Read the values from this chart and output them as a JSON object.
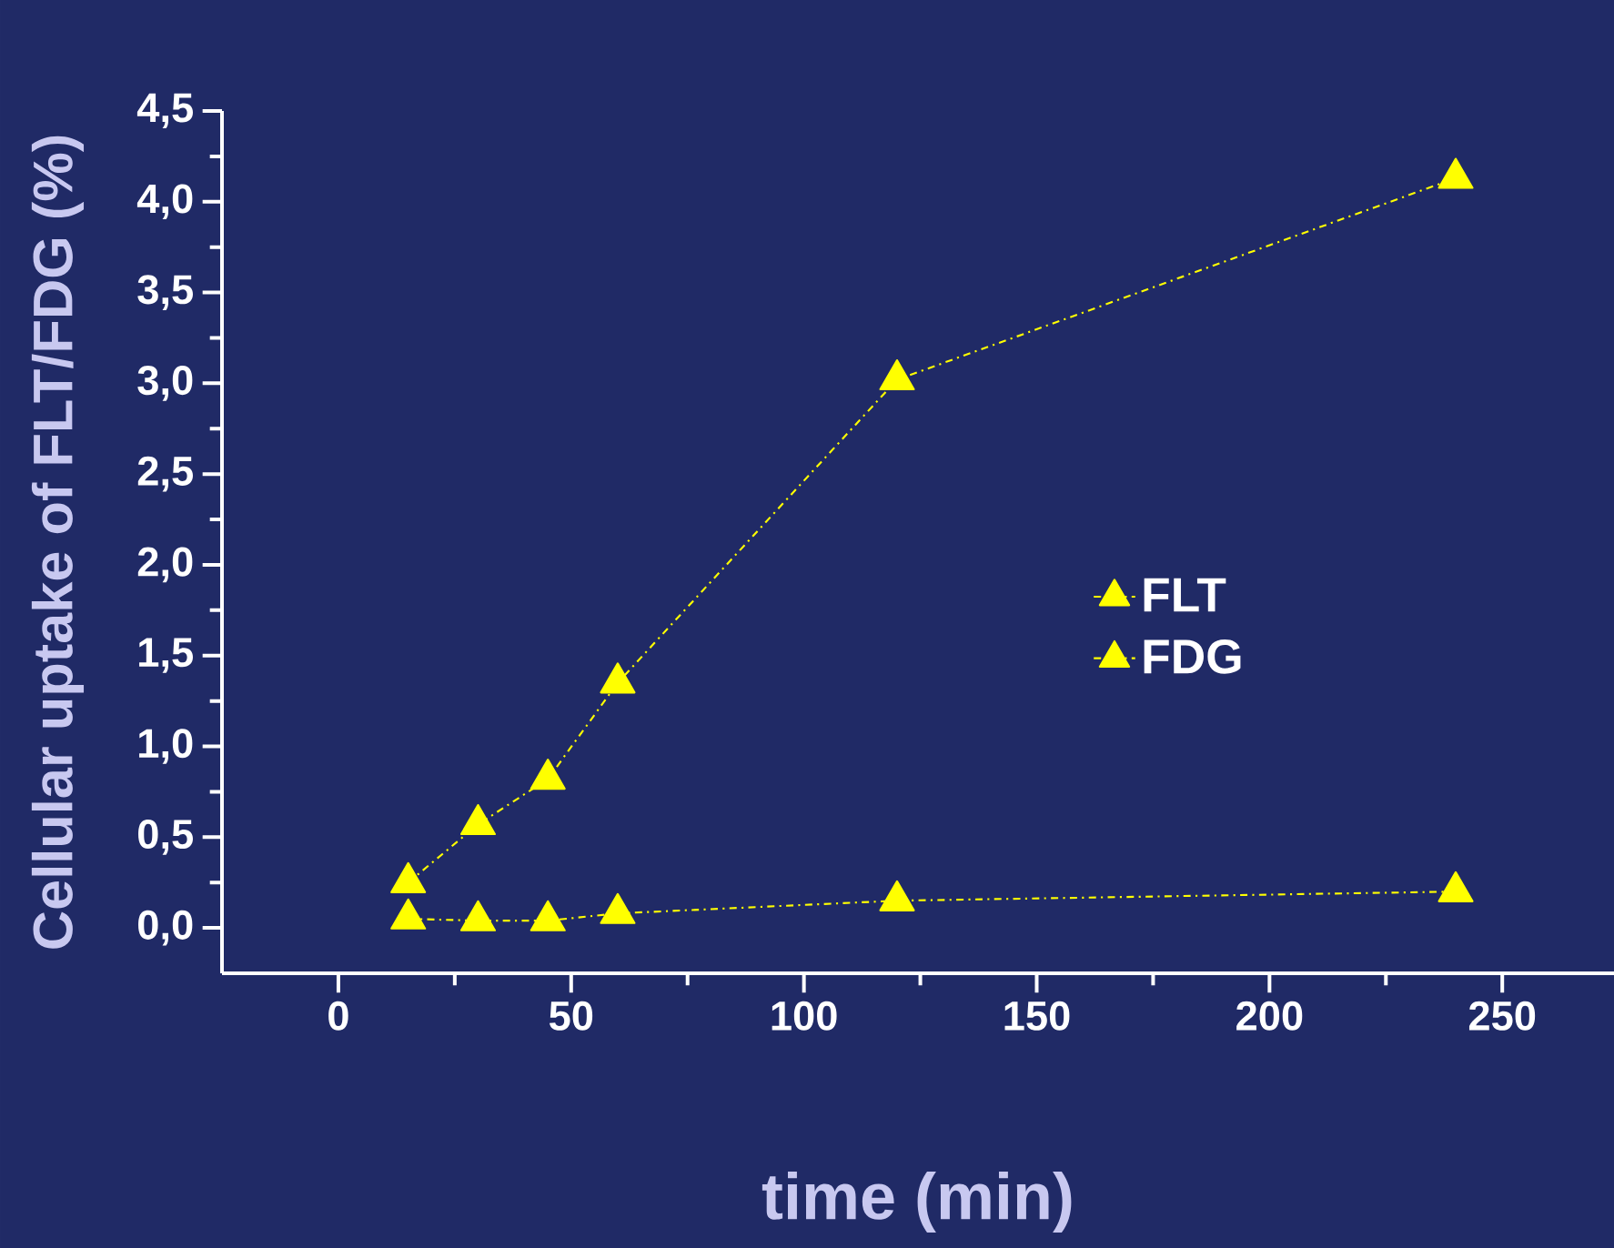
{
  "chart_data": {
    "type": "line",
    "xlabel": "time (min)",
    "ylabel": "Cellular uptake of  FLT/FDG (%)",
    "x": [
      15,
      30,
      45,
      60,
      120,
      240
    ],
    "series": [
      {
        "name": "FLT",
        "color": "#ffff00",
        "values": [
          0.25,
          0.57,
          0.82,
          1.35,
          3.02,
          4.13
        ]
      },
      {
        "name": "FDG",
        "color": "#ffff00",
        "values": [
          0.05,
          0.04,
          0.04,
          0.08,
          0.15,
          0.2
        ]
      }
    ],
    "xlim": [
      -25,
      274
    ],
    "ylim": [
      -0.25,
      4.5
    ],
    "xticks": [
      0,
      50,
      100,
      150,
      200,
      250
    ],
    "yticks": [
      {
        "value": 0,
        "label": "0,0"
      },
      {
        "value": 0.5,
        "label": "0,5"
      },
      {
        "value": 1,
        "label": "1,0"
      },
      {
        "value": 1.5,
        "label": "1,5"
      },
      {
        "value": 2,
        "label": "2,0"
      },
      {
        "value": 2.5,
        "label": "2,5"
      },
      {
        "value": 3,
        "label": "3,0"
      },
      {
        "value": 3.5,
        "label": "3,5"
      },
      {
        "value": 4,
        "label": "4,0"
      },
      {
        "value": 4.5,
        "label": "4,5"
      }
    ],
    "grid": false,
    "legend": "right",
    "marker": "triangle",
    "line_style": "dashed"
  }
}
